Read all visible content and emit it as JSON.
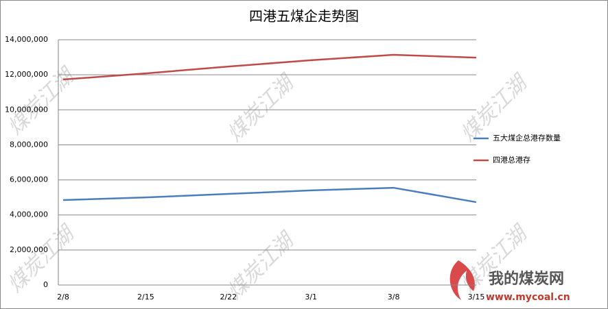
{
  "chart_data": {
    "type": "line",
    "title": "四港五煤企走势图",
    "categories": [
      "2/8",
      "2/15",
      "2/22",
      "3/1",
      "3/8",
      "3/15"
    ],
    "series": [
      {
        "name": "五大煤企总港存数量",
        "color": "#4a7ebb",
        "values": [
          4850000,
          5000000,
          5200000,
          5400000,
          5550000,
          4730000
        ]
      },
      {
        "name": "四港总港存",
        "color": "#be4b48",
        "values": [
          11730000,
          12080000,
          12470000,
          12830000,
          13140000,
          12980000
        ]
      }
    ],
    "ylim": [
      0,
      14000000
    ],
    "yticks": [
      0,
      {
        "value": 2000000,
        "label": "2,000,000"
      },
      {
        "value": 4000000,
        "label": "4,000,000"
      },
      {
        "value": 6000000,
        "label": "6,000,000"
      },
      {
        "value": 8000000,
        "label": "8,000,000"
      },
      {
        "value": 10000000,
        "label": "10,000,000"
      },
      {
        "value": 12000000,
        "label": "12,000,000"
      },
      {
        "value": 14000000,
        "label": "14,000,000"
      }
    ],
    "grid": true,
    "legend": "right"
  },
  "watermark": "煤炭江湖",
  "logo": {
    "name": "我的煤炭网",
    "url": "www.mycoal.cn"
  }
}
